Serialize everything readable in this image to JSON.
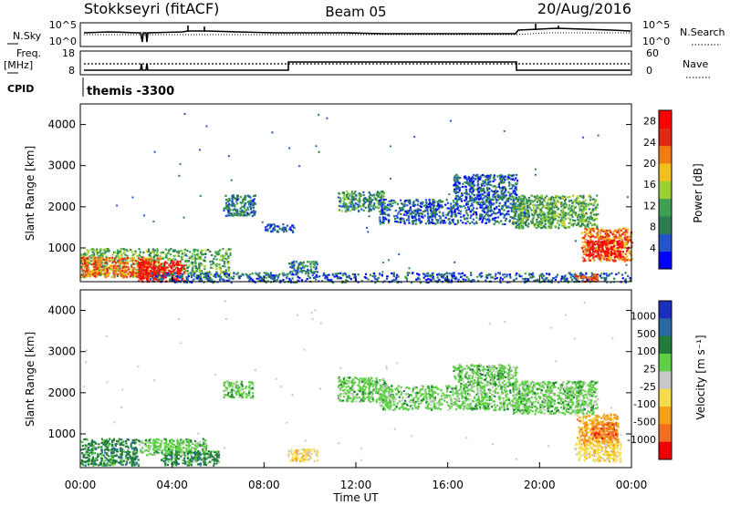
{
  "header": {
    "station": "Stokkseyri (fitACF)",
    "beam": "Beam 05",
    "date": "20/Aug/2016"
  },
  "nsky_panel": {
    "left_label": "N.Sky",
    "right_label": "N.Search",
    "left_ticks": [
      "10^5",
      "10^0"
    ],
    "right_ticks": [
      "10^5",
      "10^0"
    ]
  },
  "freq_panel": {
    "left_label_1": "Freq.",
    "left_label_2": "[MHz]",
    "right_label": "Nave",
    "left_ticks": [
      "18",
      "8"
    ],
    "right_ticks": [
      "60",
      "0"
    ]
  },
  "cpid": {
    "label": "CPID",
    "value": "themis -3300"
  },
  "colors": {
    "power": [
      "#0000ff",
      "#2255cc",
      "#2e7d4f",
      "#3ea053",
      "#9ad033",
      "#f2c01e",
      "#f07c16",
      "#e02a12",
      "#ff0000"
    ],
    "velocity": [
      "#1b2fbf",
      "#2a6aa3",
      "#237d3a",
      "#5fd045",
      "#c7c7c7",
      "#f5dc4a",
      "#f5a016",
      "#f07020",
      "#f00000"
    ]
  },
  "chart_data": [
    {
      "type": "heatmap",
      "name": "power",
      "ylabel": "Slant Range [km]",
      "yticks": [
        1000,
        2000,
        3000,
        4000
      ],
      "ylim": [
        180,
        4500
      ],
      "colorbar": {
        "label": "Power [dB]",
        "ticks": [
          "4",
          "8",
          "12",
          "16",
          "20",
          "24",
          "28"
        ],
        "range": [
          0,
          30
        ]
      },
      "regions": [
        {
          "x": [
            0.0,
            6.5
          ],
          "y": [
            300,
            1000
          ],
          "level": 12
        },
        {
          "x": [
            0.0,
            3.5
          ],
          "y": [
            300,
            800
          ],
          "level": 22
        },
        {
          "x": [
            2.5,
            4.5
          ],
          "y": [
            200,
            700
          ],
          "level": 28
        },
        {
          "x": [
            3.0,
            24.0
          ],
          "y": [
            180,
            420
          ],
          "level": 6
        },
        {
          "x": [
            6.2,
            7.6
          ],
          "y": [
            1800,
            2300
          ],
          "level": 8
        },
        {
          "x": [
            8.0,
            9.3
          ],
          "y": [
            1400,
            1600
          ],
          "level": 6
        },
        {
          "x": [
            9.0,
            10.3
          ],
          "y": [
            400,
            700
          ],
          "level": 8
        },
        {
          "x": [
            11.2,
            13.2
          ],
          "y": [
            1900,
            2400
          ],
          "level": 10
        },
        {
          "x": [
            13.0,
            19.5
          ],
          "y": [
            1600,
            2200
          ],
          "level": 6
        },
        {
          "x": [
            16.2,
            19.0
          ],
          "y": [
            2200,
            2800
          ],
          "level": 6
        },
        {
          "x": [
            18.8,
            22.5
          ],
          "y": [
            1500,
            2300
          ],
          "level": 12
        },
        {
          "x": [
            21.5,
            22.5
          ],
          "y": [
            200,
            400
          ],
          "level": 22
        },
        {
          "x": [
            21.8,
            24.0
          ],
          "y": [
            700,
            1500
          ],
          "level": 22
        },
        {
          "x": [
            22.0,
            23.6
          ],
          "y": [
            800,
            1200
          ],
          "level": 28
        }
      ]
    },
    {
      "type": "heatmap",
      "name": "velocity",
      "xlabel": "Time UT",
      "ylabel": "Slant Range [km]",
      "xticks": [
        "00:00",
        "04:00",
        "08:00",
        "12:00",
        "16:00",
        "20:00",
        "00:00"
      ],
      "yticks": [
        1000,
        2000,
        3000,
        4000
      ],
      "xlim": [
        0,
        24
      ],
      "ylim": [
        180,
        4500
      ],
      "colorbar": {
        "label": "Velocity [m s⁻¹]",
        "ticks": [
          "1000",
          "500",
          "100",
          "25",
          "-25",
          "-100",
          "-500",
          "-1000"
        ]
      },
      "regions": [
        {
          "x": [
            0.0,
            2.5
          ],
          "y": [
            250,
            900
          ],
          "level": "100"
        },
        {
          "x": [
            2.5,
            5.5
          ],
          "y": [
            500,
            900
          ],
          "level": "25"
        },
        {
          "x": [
            3.5,
            6.0
          ],
          "y": [
            250,
            600
          ],
          "level": "100"
        },
        {
          "x": [
            6.2,
            7.5
          ],
          "y": [
            1900,
            2300
          ],
          "level": "25"
        },
        {
          "x": [
            9.0,
            10.3
          ],
          "y": [
            350,
            650
          ],
          "level": "-100"
        },
        {
          "x": [
            11.2,
            13.3
          ],
          "y": [
            1800,
            2400
          ],
          "level": "25"
        },
        {
          "x": [
            13.0,
            19.5
          ],
          "y": [
            1600,
            2200
          ],
          "level": "25"
        },
        {
          "x": [
            16.2,
            19.0
          ],
          "y": [
            2200,
            2700
          ],
          "level": "25"
        },
        {
          "x": [
            18.8,
            22.5
          ],
          "y": [
            1500,
            2300
          ],
          "level": "25"
        },
        {
          "x": [
            21.6,
            23.4
          ],
          "y": [
            750,
            1500
          ],
          "level": "-500"
        },
        {
          "x": [
            22.2,
            23.3
          ],
          "y": [
            900,
            1300
          ],
          "level": "-1000"
        },
        {
          "x": [
            21.5,
            23.5
          ],
          "y": [
            350,
            800
          ],
          "level": "-100"
        }
      ]
    }
  ]
}
